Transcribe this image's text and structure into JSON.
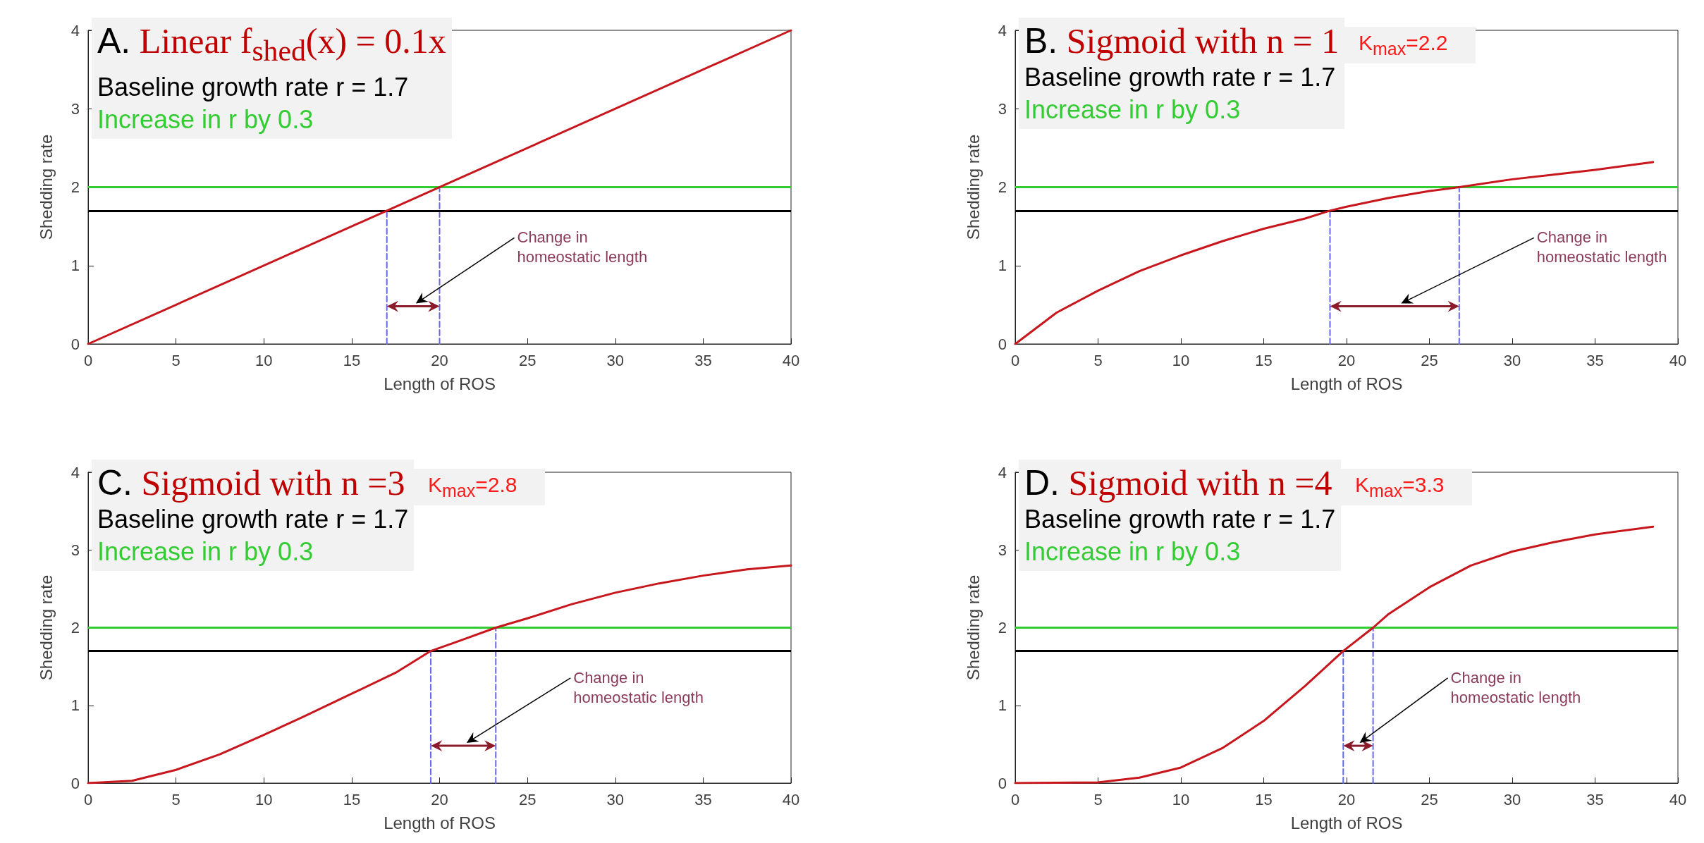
{
  "chart_data": [
    {
      "type": "line",
      "title": "A. Linear f$_{shed}$(x) = 0.1x",
      "xlabel": "Length of ROS",
      "ylabel": "Shedding rate",
      "xlim": [
        0,
        40
      ],
      "ylim": [
        0,
        4
      ],
      "xticks": [
        0,
        5,
        10,
        15,
        20,
        25,
        30,
        35,
        40
      ],
      "yticks": [
        0,
        1,
        2,
        3,
        4
      ],
      "grid": false,
      "marker": "none",
      "series": [
        {
          "color": "#c8161d",
          "x": [
            0,
            40
          ],
          "values": [
            0,
            4
          ],
          "line_style": "solid"
        },
        {
          "color": "#6666ee",
          "x": [
            17,
            17
          ],
          "values": [
            0,
            1.7
          ],
          "line_style": "dashed"
        },
        {
          "color": "#6666ee",
          "x": [
            20,
            20
          ],
          "values": [
            0,
            2
          ],
          "line_style": "dashed"
        }
      ],
      "ref_lines": [
        {
          "axis": "y",
          "value": 1.7,
          "label": "Baseline growth rate r = 1.7",
          "color": "#000000"
        },
        {
          "axis": "y",
          "value": 2,
          "label": "Increase in r by 0.3",
          "color": "#33cc33"
        }
      ],
      "annotations": [
        "Change in homeostatic length"
      ]
    },
    {
      "type": "line",
      "title": "B. Sigmoid with n = 1",
      "xlabel": "Length of ROS",
      "ylabel": "Shedding rate",
      "xlim": [
        0,
        40
      ],
      "ylim": [
        0,
        4
      ],
      "xticks": [
        0,
        5,
        10,
        15,
        20,
        25,
        30,
        35,
        40
      ],
      "yticks": [
        0,
        1,
        2,
        3,
        4
      ],
      "grid": false,
      "marker": "none",
      "series": [
        {
          "color": "#c8161d",
          "x": [
            0,
            2.5,
            5,
            7.5,
            10,
            12.5,
            15,
            17.5,
            19,
            20,
            22.5,
            25,
            26.8,
            30,
            32.5,
            35,
            38.5
          ],
          "values": [
            0,
            0.4,
            0.68,
            0.93,
            1.13,
            1.31,
            1.47,
            1.6,
            1.7,
            1.75,
            1.86,
            1.95,
            2.0,
            2.1,
            2.16,
            2.22,
            2.32
          ],
          "line_style": "solid"
        },
        {
          "color": "#6666ee",
          "x": [
            19,
            19
          ],
          "values": [
            0,
            1.7
          ],
          "line_style": "dashed"
        },
        {
          "color": "#6666ee",
          "x": [
            26.8,
            26.8
          ],
          "values": [
            0,
            2
          ],
          "line_style": "dashed"
        }
      ],
      "ref_lines": [
        {
          "axis": "y",
          "value": 1.7,
          "label": "Baseline growth rate r = 1.7",
          "color": "#000000"
        },
        {
          "axis": "y",
          "value": 2,
          "label": "Increase in r by 0.3",
          "color": "#33cc33"
        }
      ],
      "annotations": [
        "K$_{max}$=2.2",
        "Change in homeostatic length"
      ]
    },
    {
      "type": "line",
      "title": "C. Sigmoid with n =3",
      "xlabel": "Length of ROS",
      "ylabel": "Shedding rate",
      "xlim": [
        0,
        40
      ],
      "ylim": [
        0,
        4
      ],
      "xticks": [
        0,
        5,
        10,
        15,
        20,
        25,
        30,
        35,
        40
      ],
      "yticks": [
        0,
        1,
        2,
        3,
        4
      ],
      "grid": false,
      "marker": "none",
      "series": [
        {
          "color": "#c8161d",
          "x": [
            0,
            2.5,
            5,
            7.5,
            10,
            12.5,
            15,
            17.5,
            19.5,
            21,
            23.2,
            25,
            27.5,
            30,
            32.5,
            35,
            37.5,
            40
          ],
          "values": [
            0,
            0.03,
            0.17,
            0.37,
            0.62,
            0.88,
            1.15,
            1.42,
            1.7,
            1.82,
            2.0,
            2.12,
            2.3,
            2.45,
            2.57,
            2.67,
            2.75,
            2.8
          ],
          "line_style": "solid"
        },
        {
          "color": "#6666ee",
          "x": [
            19.5,
            19.5
          ],
          "values": [
            0,
            1.7
          ],
          "line_style": "dashed"
        },
        {
          "color": "#6666ee",
          "x": [
            23.2,
            23.2
          ],
          "values": [
            0,
            2
          ],
          "line_style": "dashed"
        }
      ],
      "ref_lines": [
        {
          "axis": "y",
          "value": 1.7,
          "label": "Baseline growth rate r = 1.7",
          "color": "#000000"
        },
        {
          "axis": "y",
          "value": 2,
          "label": "Increase in r by 0.3",
          "color": "#33cc33"
        }
      ],
      "annotations": [
        "K$_{max}$=2.8",
        "Change in homeostatic length"
      ]
    },
    {
      "type": "line",
      "title": "D. Sigmoid with n =4",
      "xlabel": "Length of ROS",
      "ylabel": "Shedding rate",
      "xlim": [
        0,
        40
      ],
      "ylim": [
        0,
        4
      ],
      "xticks": [
        0,
        5,
        10,
        15,
        20,
        25,
        30,
        35,
        40
      ],
      "yticks": [
        0,
        1,
        2,
        3,
        4
      ],
      "grid": false,
      "marker": "none",
      "series": [
        {
          "color": "#c8161d",
          "x": [
            0,
            5,
            7.5,
            10,
            12.5,
            15,
            17.5,
            19.8,
            21.6,
            22.5,
            25,
            27.5,
            30,
            32.5,
            35,
            38.5
          ],
          "values": [
            0,
            0.01,
            0.07,
            0.2,
            0.45,
            0.8,
            1.25,
            1.7,
            2.0,
            2.17,
            2.52,
            2.8,
            2.98,
            3.1,
            3.2,
            3.3
          ],
          "line_style": "solid"
        },
        {
          "color": "#6666ee",
          "x": [
            19.8,
            19.8
          ],
          "values": [
            0,
            1.7
          ],
          "line_style": "dashed"
        },
        {
          "color": "#6666ee",
          "x": [
            21.6,
            21.6
          ],
          "values": [
            0,
            2
          ],
          "line_style": "dashed"
        }
      ],
      "ref_lines": [
        {
          "axis": "y",
          "value": 1.7,
          "label": "Baseline growth rate r = 1.7",
          "color": "#000000"
        },
        {
          "axis": "y",
          "value": 2,
          "label": "Increase in r by 0.3",
          "color": "#33cc33"
        }
      ],
      "annotations": [
        "K$_{max}$=3.3",
        "Change in homeostatic length"
      ]
    }
  ]
}
